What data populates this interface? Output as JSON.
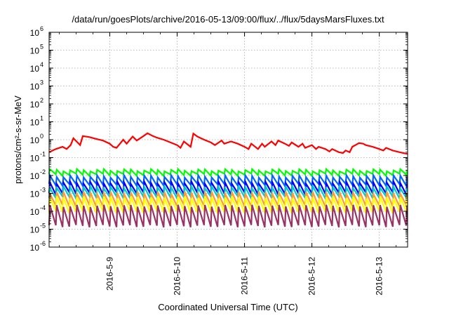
{
  "chart_data": {
    "type": "line",
    "title": "/data/run/goesPlots/archive/2016-05-13/09:00/flux/../flux/5daysMarsFluxes.txt",
    "xlabel": "Coordinated Universal Time (UTC)",
    "ylabel": "protons/cm²-s-sr-MeV",
    "y_scale": "log",
    "ylim_exp": [
      -6,
      6
    ],
    "y_tick_labels": [
      {
        "base": "10",
        "exp": "-6"
      },
      {
        "base": "10",
        "exp": "-5"
      },
      {
        "base": "10",
        "exp": "-4"
      },
      {
        "base": "10",
        "exp": "-3"
      },
      {
        "base": "10",
        "exp": "-2"
      },
      {
        "base": "10",
        "exp": "-1"
      },
      {
        "base": "10",
        "exp": "0"
      },
      {
        "base": "10",
        "exp": "1"
      },
      {
        "base": "10",
        "exp": "2"
      },
      {
        "base": "10",
        "exp": "3"
      },
      {
        "base": "10",
        "exp": "4"
      },
      {
        "base": "10",
        "exp": "5"
      },
      {
        "base": "10",
        "exp": "6"
      }
    ],
    "xlim_days": [
      8.1,
      13.42
    ],
    "x_ticks": [
      {
        "label": "2016-5-9",
        "day": 9.0
      },
      {
        "label": "2016-5-10",
        "day": 10.0
      },
      {
        "label": "2016-5-11",
        "day": 11.0
      },
      {
        "label": "2016-5-12",
        "day": 12.0
      },
      {
        "label": "2016-5-13",
        "day": 13.0
      }
    ],
    "grid": true,
    "series": [
      {
        "color": "#ff0000",
        "x": [
          8.1,
          8.2,
          8.3,
          8.36,
          8.42,
          8.46,
          8.56,
          8.6,
          8.7,
          8.8,
          8.9,
          9.0,
          9.05,
          9.1,
          9.2,
          9.25,
          9.34,
          9.4,
          9.5,
          9.56,
          9.64,
          9.7,
          9.8,
          9.9,
          10.0,
          10.05,
          10.1,
          10.2,
          10.24,
          10.3,
          10.4,
          10.5,
          10.56,
          10.66,
          10.7,
          10.8,
          10.9,
          11.0,
          11.06,
          11.1,
          11.2,
          11.26,
          11.3,
          11.4,
          11.46,
          11.5,
          11.6,
          11.66,
          11.7,
          11.8,
          11.86,
          11.9,
          12.0,
          12.06,
          12.1,
          12.2,
          12.26,
          12.3,
          12.4,
          12.46,
          12.5,
          12.56,
          12.6,
          12.7,
          12.76,
          12.8,
          12.9,
          13.0,
          13.06,
          13.1,
          13.2,
          13.3,
          13.42
        ],
        "y": [
          0.2,
          0.3,
          0.4,
          0.3,
          0.5,
          1.2,
          0.5,
          1.6,
          1.4,
          1.1,
          0.9,
          0.6,
          0.4,
          0.35,
          1.0,
          0.6,
          1.5,
          0.9,
          1.6,
          2.3,
          1.6,
          1.3,
          1.0,
          0.7,
          0.5,
          0.35,
          0.8,
          0.4,
          2.2,
          1.5,
          1.0,
          0.7,
          0.5,
          0.9,
          0.6,
          0.8,
          0.6,
          0.4,
          0.3,
          0.6,
          0.3,
          0.6,
          0.4,
          0.8,
          0.5,
          0.9,
          0.6,
          0.45,
          0.7,
          0.4,
          0.6,
          0.35,
          0.5,
          0.3,
          0.4,
          0.3,
          0.22,
          0.3,
          0.2,
          0.18,
          0.25,
          0.2,
          0.4,
          0.65,
          0.6,
          0.5,
          0.4,
          0.3,
          0.25,
          0.35,
          0.25,
          0.2,
          0.16
        ]
      },
      {
        "color": "#00ff00",
        "peak": 0.02,
        "trough": 0.011
      },
      {
        "color": "#0066ff",
        "peak": 0.009,
        "trough": 0.003
      },
      {
        "color": "#0000ff",
        "peak": 0.004,
        "trough": 0.001
      },
      {
        "color": "#00cccc",
        "peak": 0.0022,
        "trough": 0.0006
      },
      {
        "color": "#ff9933",
        "peak": 0.0011,
        "trough": 0.0002
      },
      {
        "color": "#ffff00",
        "peak": 0.0006,
        "trough": 9e-05
      },
      {
        "color": "#993366",
        "peak": 0.0002,
        "trough": 1.5e-05
      }
    ]
  }
}
